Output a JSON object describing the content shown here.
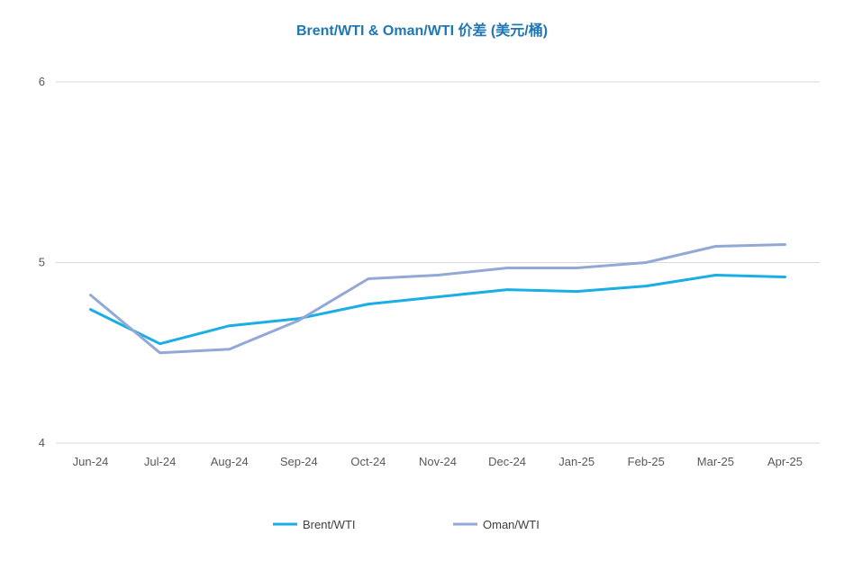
{
  "chart_data": {
    "type": "line",
    "title": "Brent/WTI & Oman/WTI 价差 (美元/桶)",
    "categories": [
      "Jun-24",
      "Jul-24",
      "Aug-24",
      "Sep-24",
      "Oct-24",
      "Nov-24",
      "Dec-24",
      "Jan-25",
      "Feb-25",
      "Mar-25",
      "Apr-25"
    ],
    "y_ticks": [
      4,
      5,
      6
    ],
    "ylim": [
      4,
      6
    ],
    "grid": true,
    "legend_position": "bottom",
    "series": [
      {
        "name": "Brent/WTI",
        "color": "#1aaee5",
        "values": [
          4.74,
          4.55,
          4.65,
          4.69,
          4.77,
          4.81,
          4.85,
          4.84,
          4.87,
          4.93,
          4.92
        ]
      },
      {
        "name": "Oman/WTI",
        "color": "#92a9d6",
        "values": [
          4.82,
          4.5,
          4.52,
          4.68,
          4.91,
          4.93,
          4.97,
          4.97,
          5.0,
          5.09,
          5.1
        ]
      }
    ]
  }
}
